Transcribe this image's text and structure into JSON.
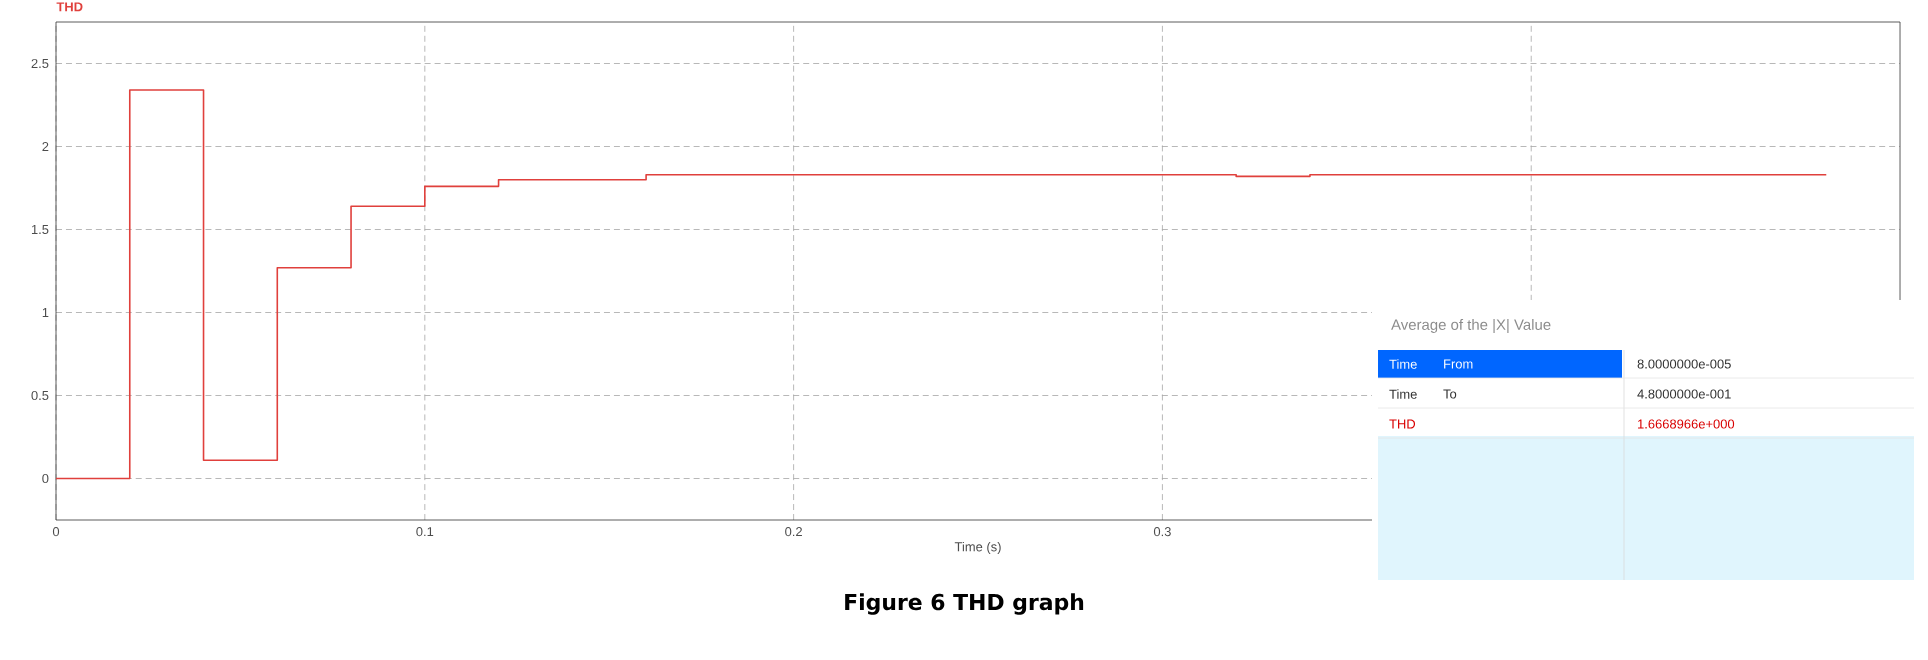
{
  "chart_data": {
    "type": "step",
    "title": "Figure 6 THD graph",
    "xlabel": "Time (s)",
    "x": [
      0,
      0.02,
      0.04,
      0.06,
      0.08,
      0.1,
      0.12,
      0.16,
      0.32,
      0.34,
      0.48
    ],
    "series": [
      {
        "name": "THD",
        "color": "#e0403c",
        "values": [
          0,
          2.34,
          0.11,
          1.27,
          1.64,
          1.76,
          1.8,
          1.83,
          1.82,
          1.83,
          1.83
        ]
      }
    ],
    "xlim": [
      0,
      0.5
    ],
    "ylim": [
      -0.25,
      2.75
    ],
    "xticks": [
      0,
      0.1,
      0.2,
      0.3,
      {
        "value": 0.4,
        "label": null
      }
    ],
    "yticks": [
      0,
      0.5,
      1,
      1.5,
      2,
      2.5
    ],
    "grid": true,
    "line_style": "solid",
    "marker": "none",
    "annotations": [
      "Average of the |X| Value",
      "Time",
      "From",
      "8.0000000e-005",
      "Time",
      "To",
      "4.8000000e-001",
      "THD",
      "1.6668966e+000"
    ]
  }
}
